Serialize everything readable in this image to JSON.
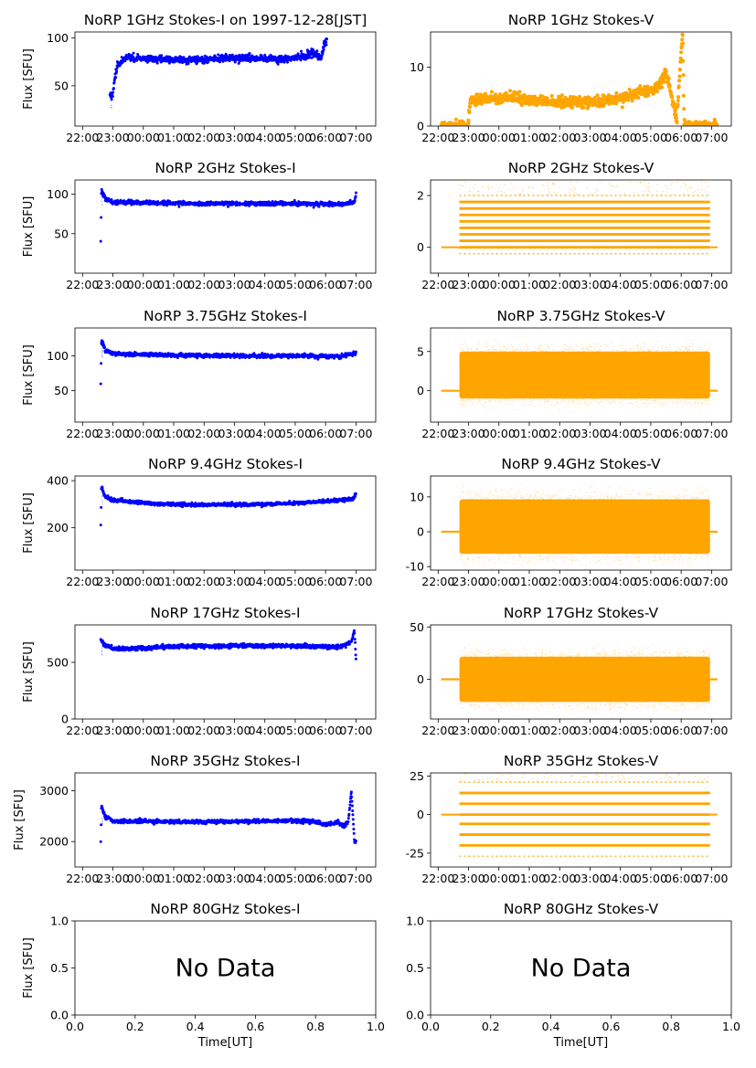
{
  "figure": {
    "date_label": "1997-12-28[JST]",
    "time_tick_labels": [
      "22:00",
      "23:00",
      "00:00",
      "01:00",
      "02:00",
      "03:00",
      "04:00",
      "05:00",
      "06:00",
      "07:00"
    ],
    "unit_tick_labels": [
      "0.0",
      "0.2",
      "0.4",
      "0.6",
      "0.8",
      "1.0"
    ],
    "xlabel": "Time[UT]",
    "ylabel": "Flux [SFU]",
    "no_data_text": "No Data",
    "colors": {
      "stokes_i": "#0000ff",
      "stokes_v": "#ffa500"
    }
  },
  "chart_data": [
    {
      "title": "NoRP 1GHz Stokes-I on 1997-12-28[JST]",
      "type": "scatter",
      "series": "I",
      "ylabel": "Flux [SFU]",
      "ylim": [
        8,
        106
      ],
      "yticks": [
        50,
        100
      ],
      "time_range": [
        22.9,
        30.04
      ],
      "profile": [
        [
          23.0,
          40
        ],
        [
          23.05,
          58
        ],
        [
          23.15,
          70
        ],
        [
          23.4,
          79
        ],
        [
          24.0,
          78
        ],
        [
          25.5,
          77
        ],
        [
          27.5,
          79
        ],
        [
          28.6,
          77
        ],
        [
          29.3,
          81
        ],
        [
          29.6,
          85
        ],
        [
          29.85,
          79
        ],
        [
          30.0,
          96
        ]
      ],
      "noise": 2.5
    },
    {
      "title": "NoRP 1GHz Stokes-V",
      "type": "scatter",
      "series": "V",
      "ylabel": "",
      "ylim": [
        0,
        16
      ],
      "yticks": [
        0,
        10
      ],
      "time_range": [
        22.1,
        31.2
      ],
      "profile": [
        [
          22.1,
          0
        ],
        [
          22.98,
          0
        ],
        [
          23.05,
          4.5
        ],
        [
          24.5,
          4.8
        ],
        [
          25.5,
          4.3
        ],
        [
          27.0,
          4.0
        ],
        [
          28.0,
          4.6
        ],
        [
          28.6,
          5.8
        ],
        [
          29.1,
          6.0
        ],
        [
          29.5,
          9.0
        ],
        [
          29.65,
          6.0
        ],
        [
          29.85,
          1.0
        ],
        [
          30.05,
          16
        ],
        [
          30.1,
          0
        ],
        [
          31.2,
          0
        ]
      ],
      "noise": 0.6
    },
    {
      "title": "NoRP 2GHz Stokes-I",
      "type": "scatter",
      "series": "I",
      "ylabel": "Flux [SFU]",
      "ylim": [
        0,
        118
      ],
      "yticks": [
        50,
        100
      ],
      "time_range": [
        22.6,
        31.0
      ],
      "profile": [
        [
          22.6,
          40
        ],
        [
          22.62,
          105
        ],
        [
          22.75,
          95
        ],
        [
          23.0,
          90
        ],
        [
          26.0,
          88
        ],
        [
          29.0,
          88
        ],
        [
          30.5,
          87
        ],
        [
          30.95,
          90
        ],
        [
          31.0,
          100
        ]
      ],
      "noise": 1.8
    },
    {
      "title": "NoRP 2GHz Stokes-V",
      "type": "scatter",
      "series": "V",
      "ylabel": "",
      "ylim": [
        -1,
        2.6
      ],
      "yticks": [
        0,
        2
      ],
      "time_range": [
        22.1,
        31.2
      ],
      "levels": [
        -0.25,
        0.0,
        0.25,
        0.5,
        0.75,
        1.0,
        1.25,
        1.5,
        1.75,
        2.0
      ],
      "active_range": [
        22.7,
        30.95
      ]
    },
    {
      "title": "NoRP 3.75GHz Stokes-I",
      "type": "scatter",
      "series": "I",
      "ylabel": "Flux [SFU]",
      "ylim": [
        5,
        140
      ],
      "yticks": [
        50,
        100
      ],
      "time_range": [
        22.6,
        31.0
      ],
      "profile": [
        [
          22.6,
          60
        ],
        [
          22.62,
          122
        ],
        [
          22.75,
          108
        ],
        [
          23.0,
          103
        ],
        [
          25.0,
          101
        ],
        [
          27.0,
          100
        ],
        [
          29.0,
          100
        ],
        [
          30.5,
          99
        ],
        [
          31.0,
          104
        ]
      ],
      "noise": 2.0
    },
    {
      "title": "NoRP 3.75GHz Stokes-V",
      "type": "scatter",
      "series": "V",
      "ylabel": "",
      "ylim": [
        -4,
        8
      ],
      "yticks": [
        0,
        5
      ],
      "time_range": [
        22.1,
        31.2
      ],
      "center": 2.0,
      "amplitude": 2.5,
      "active_range": [
        22.7,
        30.95
      ]
    },
    {
      "title": "NoRP 9.4GHz Stokes-I",
      "type": "scatter",
      "series": "I",
      "ylabel": "Flux [SFU]",
      "ylim": [
        20,
        420
      ],
      "yticks": [
        200,
        400
      ],
      "time_range": [
        22.6,
        31.0
      ],
      "profile": [
        [
          22.6,
          210
        ],
        [
          22.62,
          375
        ],
        [
          22.75,
          330
        ],
        [
          23.0,
          318
        ],
        [
          24.5,
          300
        ],
        [
          26.0,
          298
        ],
        [
          28.0,
          300
        ],
        [
          29.5,
          308
        ],
        [
          30.9,
          322
        ],
        [
          31.0,
          345
        ]
      ],
      "noise": 5
    },
    {
      "title": "NoRP 9.4GHz Stokes-V",
      "type": "scatter",
      "series": "V",
      "ylabel": "",
      "ylim": [
        -11,
        16
      ],
      "yticks": [
        -10,
        0,
        10
      ],
      "time_range": [
        22.1,
        31.2
      ],
      "center": 1.5,
      "amplitude": 6.5,
      "active_range": [
        22.7,
        30.95
      ]
    },
    {
      "title": "NoRP 17GHz Stokes-I",
      "type": "scatter",
      "series": "I",
      "ylabel": "Flux [SFU]",
      "ylim": [
        0,
        830
      ],
      "yticks": [
        0,
        500
      ],
      "time_range": [
        22.6,
        31.0
      ],
      "profile": [
        [
          22.6,
          700
        ],
        [
          22.7,
          660
        ],
        [
          23.0,
          620
        ],
        [
          24.0,
          625
        ],
        [
          25.0,
          640
        ],
        [
          27.0,
          645
        ],
        [
          29.0,
          645
        ],
        [
          30.5,
          635
        ],
        [
          30.85,
          680
        ],
        [
          30.95,
          780
        ],
        [
          31.0,
          520
        ]
      ],
      "noise": 12
    },
    {
      "title": "NoRP 17GHz Stokes-V",
      "type": "scatter",
      "series": "V",
      "ylabel": "",
      "ylim": [
        -38,
        52
      ],
      "yticks": [
        0,
        50
      ],
      "time_range": [
        22.1,
        31.2
      ],
      "center": 0.0,
      "amplitude": 18,
      "active_range": [
        22.7,
        30.95
      ]
    },
    {
      "title": "NoRP 35GHz Stokes-I",
      "type": "scatter",
      "series": "I",
      "ylabel": "Flux [SFU]",
      "ylim": [
        1500,
        3350
      ],
      "yticks": [
        2000,
        3000
      ],
      "time_range": [
        22.6,
        31.0
      ],
      "profile": [
        [
          22.6,
          2000
        ],
        [
          22.62,
          2700
        ],
        [
          22.75,
          2480
        ],
        [
          23.0,
          2400
        ],
        [
          26.0,
          2390
        ],
        [
          29.5,
          2410
        ],
        [
          30.0,
          2330
        ],
        [
          30.4,
          2380
        ],
        [
          30.6,
          2300
        ],
        [
          30.75,
          2400
        ],
        [
          30.85,
          3000
        ],
        [
          30.95,
          2000
        ]
      ],
      "noise": 25
    },
    {
      "title": "NoRP 35GHz Stokes-V",
      "type": "scatter",
      "series": "V",
      "ylabel": "",
      "ylim": [
        -34,
        27
      ],
      "yticks": [
        -25,
        0,
        25
      ],
      "time_range": [
        22.1,
        31.2
      ],
      "levels": [
        -27,
        -20,
        -13,
        -6,
        0,
        7,
        14,
        21
      ],
      "active_range": [
        22.7,
        30.95
      ]
    },
    {
      "title": "NoRP 80GHz Stokes-I",
      "type": "empty",
      "series": "I",
      "ylabel": "Flux [SFU]",
      "xlabel": "Time[UT]",
      "ylim": [
        0,
        1
      ],
      "yticks": [
        0.0,
        0.5,
        1.0
      ],
      "xlim": [
        0,
        1
      ],
      "xticks": [
        0.0,
        0.2,
        0.4,
        0.6,
        0.8,
        1.0
      ],
      "message": "No Data"
    },
    {
      "title": "NoRP 80GHz Stokes-V",
      "type": "empty",
      "series": "V",
      "ylabel": "",
      "xlabel": "Time[UT]",
      "ylim": [
        0,
        1
      ],
      "yticks": [
        0.0,
        0.5,
        1.0
      ],
      "xlim": [
        0,
        1
      ],
      "xticks": [
        0.0,
        0.2,
        0.4,
        0.6,
        0.8,
        1.0
      ],
      "message": "No Data"
    }
  ]
}
